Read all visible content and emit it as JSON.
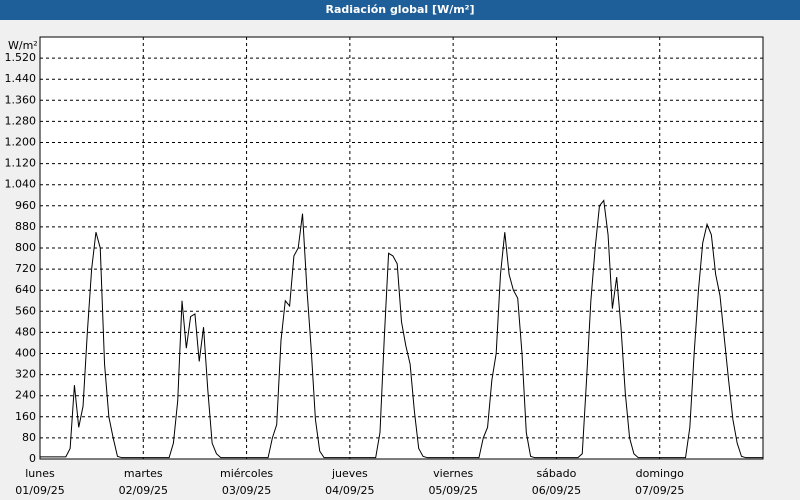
{
  "chart_data": {
    "type": "line",
    "title": "Radiación global [W/m²]",
    "y_label": "W/m²",
    "xlim": [
      0,
      168
    ],
    "ylim": [
      0,
      1600
    ],
    "grid": true,
    "color": "#000000",
    "xticks": [
      {
        "value": 0,
        "label": "lunes"
      },
      {
        "value": 24,
        "label": "martes"
      },
      {
        "value": 48,
        "label": "miércoles"
      },
      {
        "value": 72,
        "label": "jueves"
      },
      {
        "value": 96,
        "label": "viernes"
      },
      {
        "value": 120,
        "label": "sábado"
      },
      {
        "value": 144,
        "label": "domingo"
      }
    ],
    "xtick_dates": [
      "01/09/25",
      "02/09/25",
      "03/09/25",
      "04/09/25",
      "05/09/25",
      "06/09/25",
      "07/09/25"
    ],
    "yticks": [
      0,
      80,
      160,
      240,
      320,
      400,
      480,
      560,
      640,
      720,
      800,
      880,
      960,
      {
        "value": 1040,
        "label": "1.040"
      },
      {
        "value": 1120,
        "label": "1.120"
      },
      {
        "value": 1200,
        "label": "1.200"
      },
      {
        "value": 1280,
        "label": "1.280"
      },
      {
        "value": 1360,
        "label": "1.360"
      },
      {
        "value": 1440,
        "label": "1.440"
      },
      {
        "value": 1520,
        "label": "1.520"
      }
    ],
    "x": [
      0,
      1,
      2,
      3,
      4,
      5,
      6,
      7,
      8,
      9,
      10,
      11,
      12,
      13,
      14,
      15,
      16,
      17,
      18,
      19,
      20,
      21,
      22,
      23,
      24,
      25,
      26,
      27,
      28,
      29,
      30,
      31,
      32,
      33,
      34,
      35,
      36,
      37,
      38,
      39,
      40,
      41,
      42,
      43,
      44,
      45,
      46,
      47,
      48,
      49,
      50,
      51,
      52,
      53,
      54,
      55,
      56,
      57,
      58,
      59,
      60,
      61,
      62,
      63,
      64,
      65,
      66,
      67,
      68,
      69,
      70,
      71,
      72,
      73,
      74,
      75,
      76,
      77,
      78,
      79,
      80,
      81,
      82,
      83,
      84,
      85,
      86,
      87,
      88,
      89,
      90,
      91,
      92,
      93,
      94,
      95,
      96,
      97,
      98,
      99,
      100,
      101,
      102,
      103,
      104,
      105,
      106,
      107,
      108,
      109,
      110,
      111,
      112,
      113,
      114,
      115,
      116,
      117,
      118,
      119,
      120,
      121,
      122,
      123,
      124,
      125,
      126,
      127,
      128,
      129,
      130,
      131,
      132,
      133,
      134,
      135,
      136,
      137,
      138,
      139,
      140,
      141,
      142,
      143,
      144,
      145,
      146,
      147,
      148,
      149,
      150,
      151,
      152,
      153,
      154,
      155,
      156,
      157,
      158,
      159,
      160,
      161,
      162,
      163,
      164,
      165,
      166,
      167,
      168
    ],
    "values": [
      8,
      8,
      8,
      8,
      8,
      8,
      8,
      40,
      280,
      120,
      200,
      480,
      720,
      860,
      800,
      360,
      160,
      80,
      10,
      5,
      5,
      5,
      5,
      5,
      5,
      5,
      5,
      5,
      5,
      5,
      5,
      60,
      220,
      600,
      420,
      540,
      550,
      370,
      500,
      260,
      60,
      20,
      5,
      5,
      5,
      5,
      5,
      5,
      5,
      5,
      5,
      5,
      5,
      5,
      80,
      130,
      450,
      600,
      580,
      770,
      800,
      930,
      650,
      420,
      150,
      30,
      5,
      5,
      5,
      5,
      5,
      5,
      5,
      5,
      5,
      5,
      5,
      5,
      5,
      100,
      460,
      780,
      770,
      740,
      520,
      430,
      360,
      180,
      40,
      10,
      5,
      5,
      5,
      5,
      5,
      5,
      5,
      5,
      5,
      5,
      5,
      5,
      5,
      80,
      120,
      300,
      400,
      700,
      860,
      700,
      640,
      610,
      400,
      100,
      10,
      5,
      5,
      5,
      5,
      5,
      5,
      5,
      5,
      5,
      5,
      5,
      20,
      300,
      600,
      800,
      960,
      980,
      850,
      570,
      690,
      500,
      250,
      80,
      20,
      5,
      5,
      5,
      5,
      5,
      5,
      5,
      5,
      5,
      5,
      5,
      5,
      120,
      400,
      640,
      820,
      890,
      850,
      700,
      620,
      460,
      300,
      150,
      60,
      10,
      5,
      5,
      5,
      5,
      5
    ]
  }
}
